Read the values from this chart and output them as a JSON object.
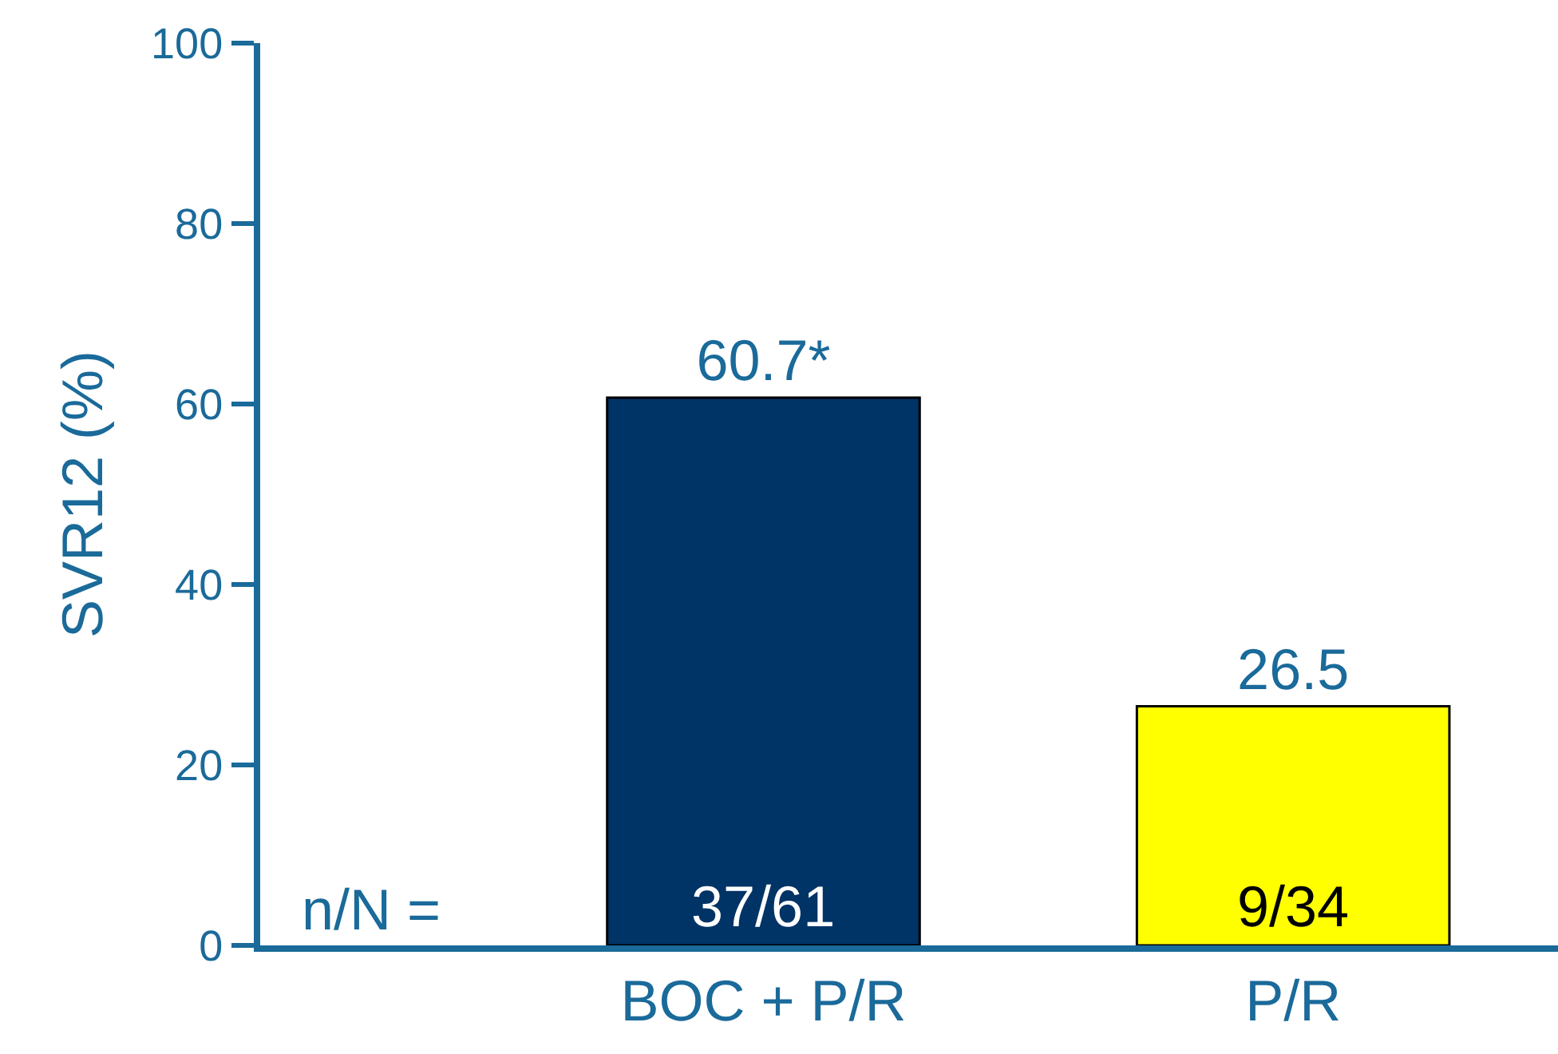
{
  "chart_data": {
    "type": "bar",
    "ylabel": "SVR12 (%)",
    "categories": [
      "BOC + P/R",
      "P/R"
    ],
    "values": [
      60.7,
      26.5
    ],
    "colors": [
      "#003366",
      "#ffff00"
    ],
    "value_labels": [
      "60.7*",
      "26.5"
    ],
    "ylim": [
      0,
      100
    ],
    "yticks": [
      0,
      20,
      40,
      60,
      80,
      100
    ],
    "grid": false,
    "legend": false,
    "annotations": [
      "n/N =",
      "37/61",
      "9/34"
    ]
  }
}
